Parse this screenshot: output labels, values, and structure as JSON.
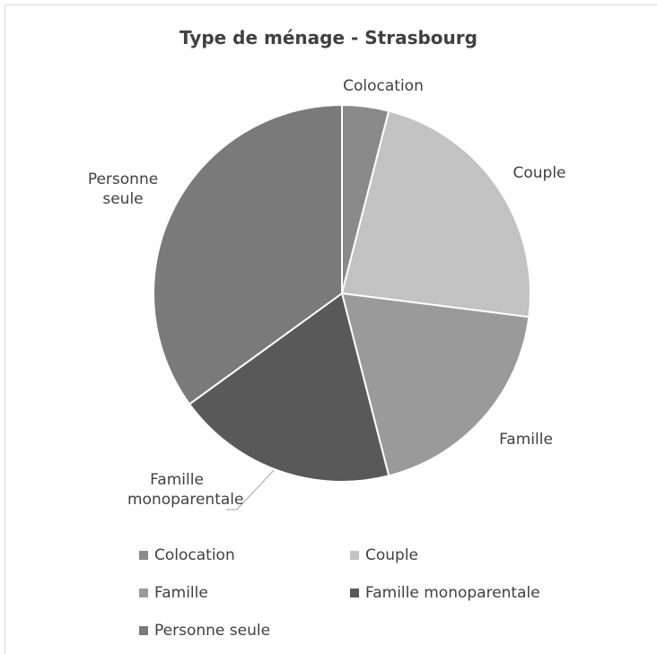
{
  "chart_data": {
    "type": "pie",
    "title": "Type de ménage - Strasbourg",
    "categories": [
      "Colocation",
      "Couple",
      "Famille",
      "Famille monoparentale",
      "Personne seule"
    ],
    "values": [
      4,
      23,
      19,
      19,
      35
    ],
    "colors": [
      "#8a8a8a",
      "#c2c2c2",
      "#9a9a9a",
      "#595959",
      "#7a7a7a"
    ],
    "legend": "bottom"
  }
}
